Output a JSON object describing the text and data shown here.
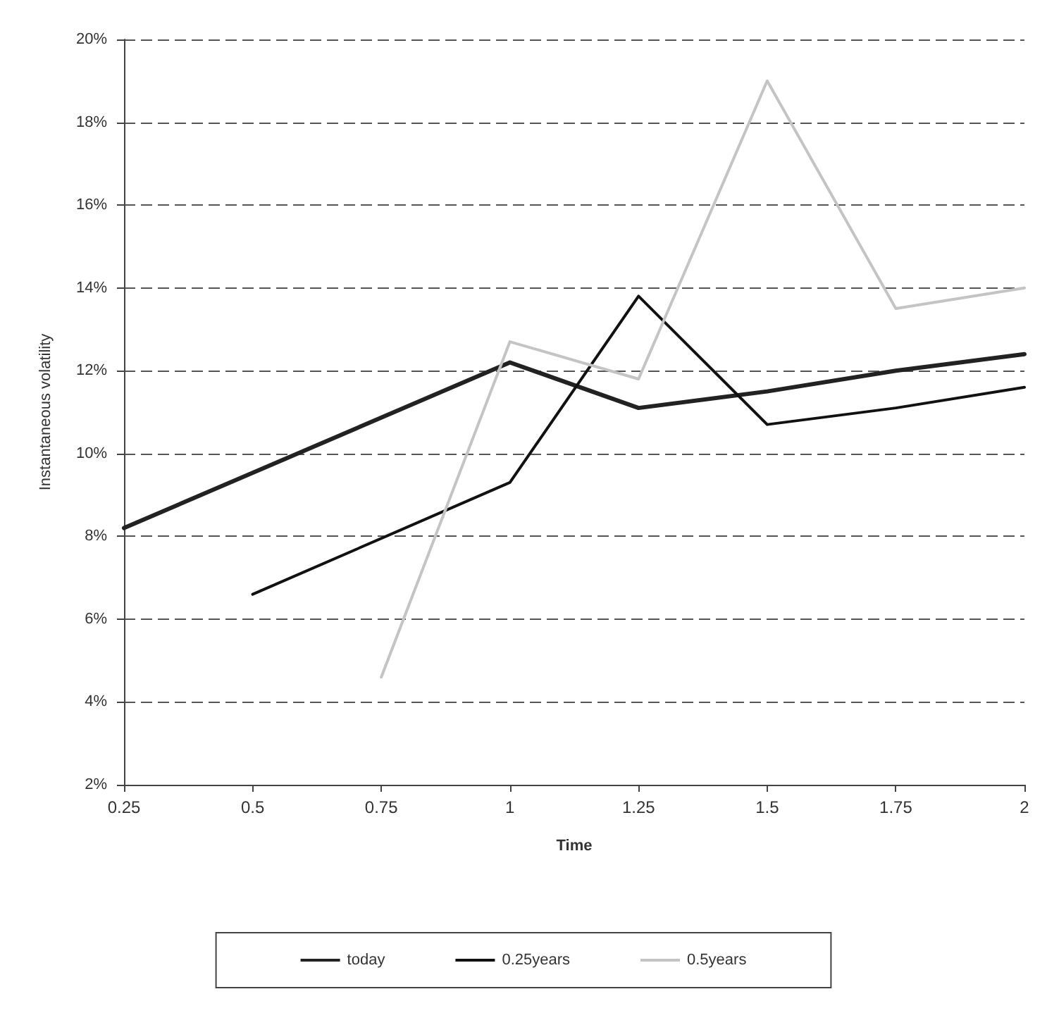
{
  "chart_data": {
    "type": "line",
    "xlabel": "Time",
    "ylabel": "Instantaneous volatility",
    "x": [
      0.25,
      0.5,
      0.75,
      1,
      1.25,
      1.5,
      1.75,
      2
    ],
    "series": [
      {
        "name": "today",
        "color": "#222222",
        "values": [
          8.2,
          null,
          null,
          12.2,
          11.1,
          11.5,
          12.0,
          12.4
        ]
      },
      {
        "name": "0.25years",
        "color": "#111111",
        "values": [
          null,
          6.6,
          null,
          9.3,
          13.8,
          10.7,
          11.1,
          11.6
        ]
      },
      {
        "name": "0.5years",
        "color": "#c4c4c4",
        "values": [
          null,
          null,
          4.6,
          12.7,
          11.8,
          19.0,
          13.5,
          14.0
        ]
      }
    ],
    "xlim": [
      0.25,
      2
    ],
    "xticks": [
      0.25,
      0.5,
      0.75,
      1,
      1.25,
      1.5,
      1.75,
      2
    ],
    "ylim": [
      2,
      20
    ],
    "yticks": [
      {
        "value": 2,
        "label": "2%"
      },
      {
        "value": 4,
        "label": "4%"
      },
      {
        "value": 6,
        "label": "6%"
      },
      {
        "value": 8,
        "label": "8%"
      },
      {
        "value": 10,
        "label": "10%"
      },
      {
        "value": 12,
        "label": "12%"
      },
      {
        "value": 14,
        "label": "14%"
      },
      {
        "value": 16,
        "label": "16%"
      },
      {
        "value": 18,
        "label": "18%"
      },
      {
        "value": 20,
        "label": "20%"
      }
    ],
    "grid": "y",
    "legend": "bottom",
    "marker": "none",
    "line_style": "solid"
  }
}
